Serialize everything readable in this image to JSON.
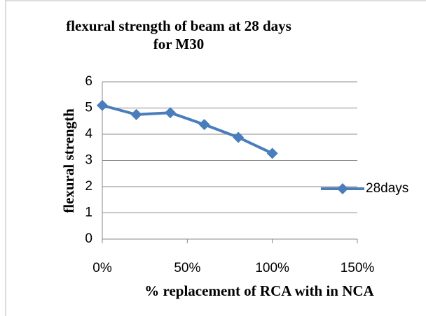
{
  "chart_data": {
    "type": "line",
    "title": "flexural strength of beam at 28 days for M30",
    "x_label": "% replacement of RCA with in NCA",
    "y_label": "flexural strength",
    "x": [
      0,
      20,
      40,
      60,
      80,
      100
    ],
    "series": [
      {
        "name": "28days",
        "color": "#4a7ebb",
        "values": [
          5.1,
          4.75,
          4.82,
          4.37,
          3.88,
          3.27
        ]
      }
    ],
    "xlim": [
      0,
      150
    ],
    "xticks": [
      {
        "value": 0,
        "label": "0%"
      },
      {
        "value": 50,
        "label": "50%"
      },
      {
        "value": 100,
        "label": "100%"
      },
      {
        "value": 150,
        "label": "150%"
      }
    ],
    "ylim": [
      0,
      6
    ],
    "yticks": [
      0,
      1,
      2,
      3,
      4,
      5,
      6
    ],
    "grid": true,
    "legend": "right"
  }
}
